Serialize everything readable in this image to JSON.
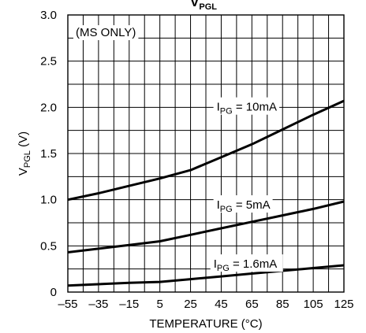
{
  "chart_data": {
    "type": "line",
    "title": "V",
    "title_sub": "PGL",
    "xlabel": "TEMPERATURE (°C)",
    "ylabel_main": "V",
    "ylabel_sub": "PGL",
    "ylabel_unit": " (V)",
    "xlim": [
      -55,
      125
    ],
    "ylim": [
      0,
      3.0
    ],
    "x_ticks": [
      -55,
      -35,
      -15,
      5,
      25,
      45,
      65,
      85,
      105,
      125
    ],
    "y_ticks": [
      0,
      0.5,
      1.0,
      1.5,
      2.0,
      2.5,
      3.0
    ],
    "y_tick_labels": [
      "0",
      "0.5",
      "1.0",
      "1.5",
      "2.0",
      "2.5",
      "3.0"
    ],
    "x_tick_labels": [
      "–55",
      "–35",
      "–15",
      "5",
      "25",
      "45",
      "65",
      "85",
      "105",
      "125"
    ],
    "x_minor_grid_step": 10,
    "y_grid_step": 0.25,
    "grid": true,
    "annotation": "(MS ONLY)",
    "series": [
      {
        "name_main": "I",
        "name_sub": "PG",
        "name_rest": " = 10mA",
        "x": [
          -55,
          -35,
          -15,
          5,
          25,
          45,
          65,
          85,
          105,
          125
        ],
        "y": [
          1.0,
          1.07,
          1.15,
          1.23,
          1.32,
          1.46,
          1.6,
          1.76,
          1.92,
          2.07
        ]
      },
      {
        "name_main": "I",
        "name_sub": "PG",
        "name_rest": " = 5mA",
        "x": [
          -55,
          -35,
          -15,
          5,
          25,
          45,
          65,
          85,
          105,
          125
        ],
        "y": [
          0.43,
          0.47,
          0.51,
          0.55,
          0.62,
          0.69,
          0.76,
          0.83,
          0.9,
          0.98
        ]
      },
      {
        "name_main": "I",
        "name_sub": "PG",
        "name_rest": " = 1.6mA",
        "x": [
          -55,
          -35,
          -15,
          5,
          25,
          45,
          65,
          85,
          105,
          125
        ],
        "y": [
          0.07,
          0.085,
          0.1,
          0.11,
          0.14,
          0.17,
          0.2,
          0.23,
          0.26,
          0.29
        ]
      }
    ]
  }
}
